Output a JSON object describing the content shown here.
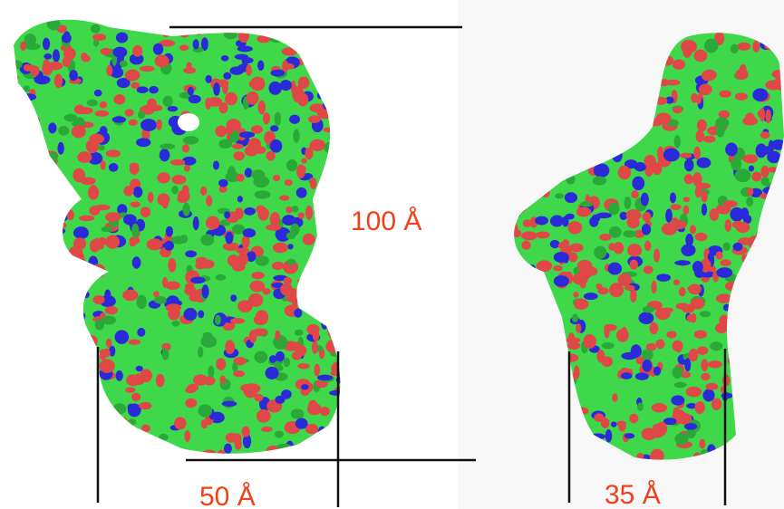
{
  "labels": {
    "height": "100 Å",
    "width_left": "50 Å",
    "width_right": "35 Å"
  }
}
